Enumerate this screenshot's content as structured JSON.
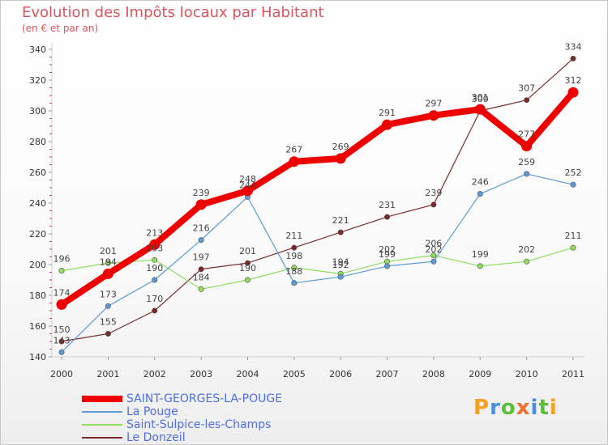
{
  "header": {
    "title": "Evolution des Impôts locaux par Habitant",
    "subtitle": "(en € et par an)"
  },
  "logo": {
    "text": "Proxiti"
  },
  "chart_data": {
    "type": "line",
    "x": [
      2000,
      2001,
      2002,
      2003,
      2004,
      2005,
      2006,
      2007,
      2008,
      2009,
      2010,
      2011
    ],
    "ylim": [
      140,
      340
    ],
    "yticks": [
      140,
      160,
      180,
      200,
      220,
      240,
      260,
      280,
      300,
      320,
      340
    ],
    "grid": false,
    "legend_position": "bottom-left",
    "series": [
      {
        "name": "SAINT-GEORGES-LA-POUGE",
        "color": "#ee0000",
        "emphasis": true,
        "values": [
          174,
          194,
          213,
          239,
          248,
          267,
          269,
          291,
          297,
          301,
          277,
          312
        ]
      },
      {
        "name": "La Pouge",
        "color": "#5b9bd5",
        "values": [
          143,
          173,
          190,
          216,
          244,
          188,
          192,
          199,
          202,
          246,
          259,
          252
        ]
      },
      {
        "name": "Saint-Sulpice-les-Champs",
        "color": "#90dd60",
        "values": [
          196,
          201,
          203,
          184,
          190,
          198,
          194,
          202,
          206,
          199,
          202,
          211
        ]
      },
      {
        "name": "Le Donzeil",
        "color": "#7a2a2a",
        "values": [
          150,
          155,
          170,
          197,
          201,
          211,
          221,
          231,
          239,
          300,
          307,
          334
        ]
      }
    ]
  }
}
